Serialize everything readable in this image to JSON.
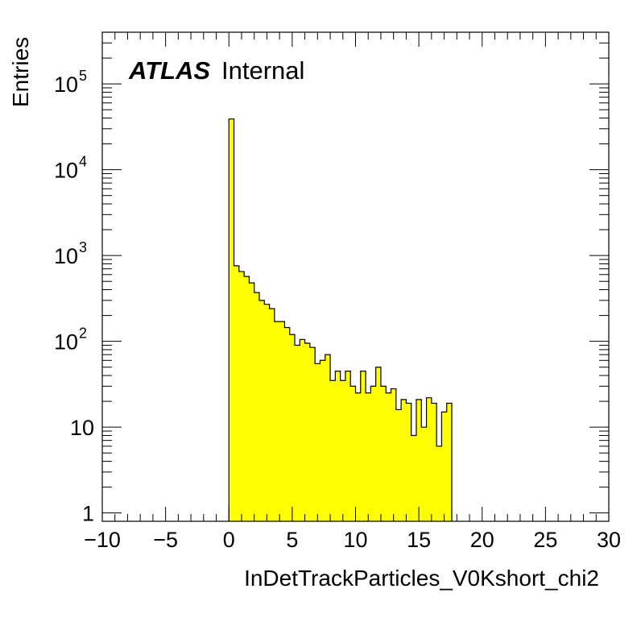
{
  "chart_data": {
    "type": "histogram",
    "title": "",
    "xlabel": "InDetTrackParticles_V0Kshort_chi2",
    "ylabel": "Entries",
    "xlim": [
      -10,
      30
    ],
    "ylim": [
      0.8,
      400000
    ],
    "yscale": "log",
    "grid": false,
    "legend": "none",
    "fill_color": "#ffff00",
    "line_color": "#000000",
    "x_ticks": [
      {
        "value": -10,
        "label": "−10"
      },
      {
        "value": -5,
        "label": "−5"
      },
      {
        "value": 0,
        "label": "0"
      },
      {
        "value": 5,
        "label": "5"
      },
      {
        "value": 10,
        "label": "10"
      },
      {
        "value": 15,
        "label": "15"
      },
      {
        "value": 20,
        "label": "20"
      },
      {
        "value": 25,
        "label": "25"
      },
      {
        "value": 30,
        "label": "30"
      }
    ],
    "y_ticks": [
      {
        "value": 1,
        "label": "1"
      },
      {
        "value": 10,
        "label": "10"
      },
      {
        "value": 100,
        "label": "10",
        "exp": "2"
      },
      {
        "value": 1000,
        "label": "10",
        "exp": "3"
      },
      {
        "value": 10000,
        "label": "10",
        "exp": "4"
      },
      {
        "value": 100000,
        "label": "10",
        "exp": "5"
      }
    ],
    "bin_width": 0.4,
    "bin_edges_start": 0,
    "values": [
      39000,
      760,
      650,
      570,
      480,
      370,
      300,
      270,
      240,
      170,
      170,
      145,
      120,
      90,
      105,
      95,
      85,
      55,
      60,
      70,
      35,
      45,
      35,
      45,
      30,
      25,
      45,
      25,
      30,
      50,
      30,
      25,
      28,
      16,
      21,
      19,
      8,
      21,
      10,
      22,
      19,
      6,
      15,
      19
    ]
  },
  "annotations": {
    "atlas": "ATLAS",
    "internal": "Internal"
  }
}
